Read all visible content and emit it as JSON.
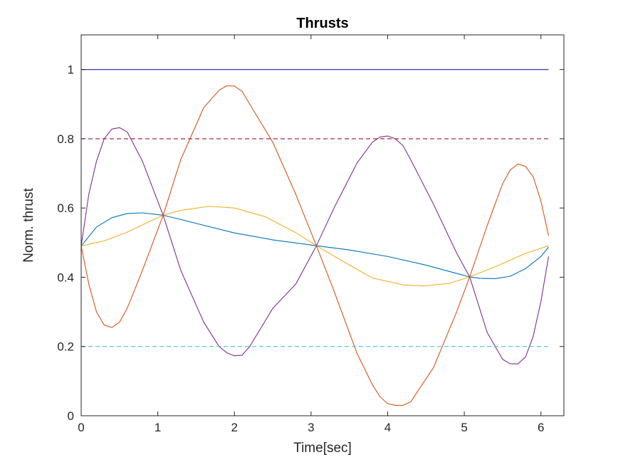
{
  "chart_data": {
    "type": "line",
    "title": "Thrusts",
    "xlabel": "Time[sec]",
    "ylabel": "Norm. thrust",
    "xlim": [
      0,
      6.3
    ],
    "ylim": [
      0,
      1.1
    ],
    "xticks": [
      "0",
      "1",
      "2",
      "3",
      "4",
      "5",
      "6"
    ],
    "yticks": [
      "0",
      "0.2",
      "0.4",
      "0.6",
      "0.8",
      "1"
    ],
    "grid": false,
    "series": [
      {
        "color": "#0072BD",
        "style": "solid",
        "x": [
          0,
          0.2,
          0.4,
          0.6,
          0.8,
          1.0,
          1.07,
          1.3,
          1.6,
          2.0,
          2.5,
          3.07,
          3.5,
          4.0,
          4.5,
          4.8,
          5.07,
          5.2,
          5.4,
          5.6,
          5.8,
          6.0,
          6.1
        ],
        "y": [
          0.49,
          0.545,
          0.572,
          0.584,
          0.586,
          0.581,
          0.579,
          0.567,
          0.55,
          0.528,
          0.508,
          0.491,
          0.479,
          0.46,
          0.435,
          0.417,
          0.401,
          0.397,
          0.396,
          0.403,
          0.425,
          0.46,
          0.487
        ]
      },
      {
        "color": "#EDB120",
        "style": "solid",
        "x": [
          0,
          0.3,
          0.6,
          0.9,
          1.07,
          1.3,
          1.67,
          2.0,
          2.4,
          2.8,
          3.07,
          3.4,
          3.8,
          4.2,
          4.47,
          4.8,
          5.07,
          5.4,
          5.8,
          6.1
        ],
        "y": [
          0.49,
          0.505,
          0.53,
          0.562,
          0.579,
          0.593,
          0.605,
          0.6,
          0.575,
          0.529,
          0.491,
          0.448,
          0.398,
          0.378,
          0.375,
          0.382,
          0.401,
          0.43,
          0.469,
          0.491
        ]
      },
      {
        "color": "#D95319",
        "style": "solid",
        "x": [
          0,
          0.1,
          0.2,
          0.3,
          0.4,
          0.5,
          0.6,
          0.8,
          1.07,
          1.3,
          1.6,
          1.8,
          1.9,
          2.0,
          2.1,
          2.2,
          2.5,
          2.8,
          3.07,
          3.3,
          3.6,
          3.8,
          3.9,
          4.0,
          4.1,
          4.2,
          4.3,
          4.6,
          4.9,
          5.07,
          5.3,
          5.5,
          5.6,
          5.7,
          5.8,
          5.9,
          6.0,
          6.1
        ],
        "y": [
          0.49,
          0.38,
          0.3,
          0.262,
          0.255,
          0.27,
          0.31,
          0.42,
          0.579,
          0.74,
          0.89,
          0.94,
          0.953,
          0.952,
          0.937,
          0.9,
          0.79,
          0.64,
          0.491,
          0.36,
          0.18,
          0.09,
          0.055,
          0.035,
          0.03,
          0.03,
          0.04,
          0.14,
          0.3,
          0.401,
          0.55,
          0.67,
          0.71,
          0.727,
          0.72,
          0.69,
          0.62,
          0.52
        ]
      },
      {
        "color": "#7E2F8E",
        "style": "solid",
        "x": [
          0,
          0.1,
          0.2,
          0.3,
          0.4,
          0.5,
          0.6,
          0.8,
          1.07,
          1.3,
          1.6,
          1.8,
          1.9,
          2.0,
          2.1,
          2.2,
          2.5,
          2.8,
          3.07,
          3.3,
          3.6,
          3.8,
          3.9,
          4.0,
          4.1,
          4.2,
          4.3,
          4.6,
          4.9,
          5.07,
          5.3,
          5.5,
          5.6,
          5.7,
          5.8,
          5.9,
          6.0,
          6.1
        ],
        "y": [
          0.49,
          0.64,
          0.735,
          0.8,
          0.828,
          0.832,
          0.82,
          0.735,
          0.579,
          0.42,
          0.27,
          0.2,
          0.182,
          0.173,
          0.175,
          0.2,
          0.31,
          0.38,
          0.491,
          0.6,
          0.73,
          0.79,
          0.805,
          0.808,
          0.8,
          0.78,
          0.74,
          0.61,
          0.47,
          0.401,
          0.24,
          0.163,
          0.15,
          0.15,
          0.17,
          0.23,
          0.33,
          0.46
        ]
      },
      {
        "color": "#1F1FA8",
        "style": "solid",
        "x": [
          0,
          6.1
        ],
        "y": [
          1,
          1
        ]
      },
      {
        "color": "#A2142F",
        "style": "dashed",
        "x": [
          0,
          6.1
        ],
        "y": [
          0.8,
          0.8
        ]
      },
      {
        "color": "#4DBEEE",
        "style": "dashed",
        "x": [
          0,
          6.1
        ],
        "y": [
          0.2,
          0.2
        ]
      }
    ]
  }
}
